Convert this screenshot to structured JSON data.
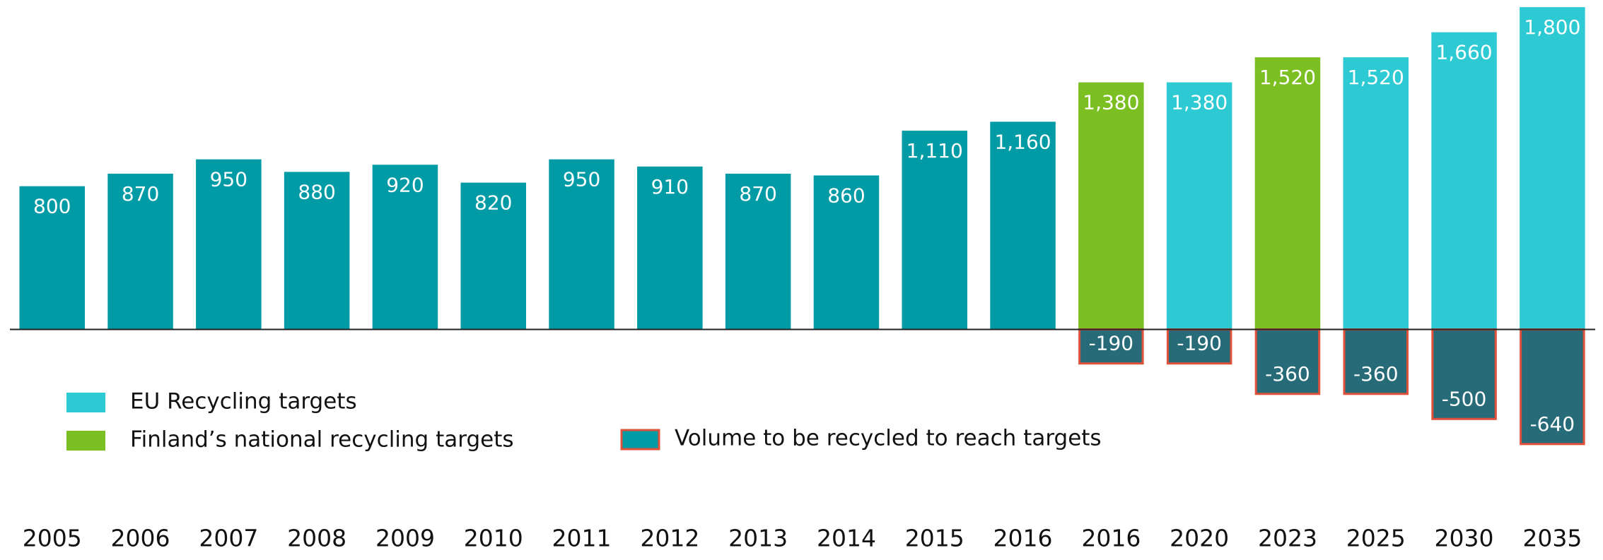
{
  "chart_data": {
    "type": "bar",
    "categories": [
      "2005",
      "2006",
      "2007",
      "2008",
      "2009",
      "2010",
      "2011",
      "2012",
      "2013",
      "2014",
      "2015",
      "2016",
      "2016",
      "2020",
      "2023",
      "2025",
      "2030",
      "2035"
    ],
    "values": [
      800,
      870,
      950,
      880,
      920,
      820,
      950,
      910,
      870,
      860,
      1110,
      1160,
      1380,
      1380,
      1520,
      1520,
      1660,
      1800
    ],
    "value_labels": [
      "800",
      "870",
      "950",
      "880",
      "920",
      "820",
      "950",
      "910",
      "870",
      "860",
      "1,110",
      "1,160",
      "1,380",
      "1,380",
      "1,520",
      "1,520",
      "1,660",
      "1,800"
    ],
    "bar_colors": [
      "#019ba6",
      "#019ba6",
      "#019ba6",
      "#019ba6",
      "#019ba6",
      "#019ba6",
      "#019ba6",
      "#019ba6",
      "#019ba6",
      "#019ba6",
      "#019ba6",
      "#019ba6",
      "#7bbf22",
      "#2ecad3",
      "#7bbf22",
      "#2ecad3",
      "#2ecad3",
      "#2ecad3"
    ],
    "gap_series": {
      "name": "Volume to be recycled to reach targets",
      "color": "#276b78",
      "border_color": "#e0503a",
      "legend_color": "#019ba6",
      "values": [
        null,
        null,
        null,
        null,
        null,
        null,
        null,
        null,
        null,
        null,
        null,
        null,
        -190,
        -190,
        -360,
        -360,
        -500,
        -640
      ]
    },
    "legend": [
      {
        "name": "EU Recycling targets",
        "color": "#2ecad3"
      },
      {
        "name": "Finland’s national recycling targets",
        "color": "#7bbf22"
      }
    ],
    "ylim": [
      -700,
      1840
    ]
  }
}
